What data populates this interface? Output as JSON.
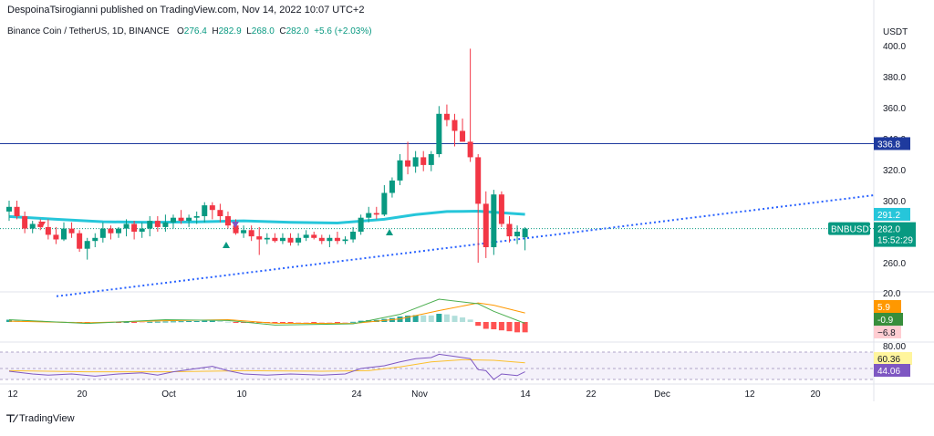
{
  "header": {
    "published_by": "DespoinaTsirogianni published on TradingView.com, Nov 14, 2022 10:07 UTC+2"
  },
  "legend": {
    "symbol": "Binance Coin / TetherUS, 1D, BINANCE",
    "o_label": "O",
    "o_value": "276.4",
    "h_label": "H",
    "h_value": "282.9",
    "l_label": "L",
    "l_value": "268.0",
    "c_label": "C",
    "c_value": "282.0",
    "change": "+5.6 (+2.03%)"
  },
  "price_axis": {
    "currency": "USDT",
    "ticks": [
      "400.0",
      "380.0",
      "360.0",
      "340.0",
      "320.0",
      "300.0",
      "260.0"
    ],
    "labels": {
      "resistance": "336.8",
      "ma": "291.2",
      "symbol_tag": "BNBUSDT",
      "last_price": "282.0",
      "countdown": "15:52:29"
    }
  },
  "macd_axis": {
    "tick_top": "20.0",
    "labels": {
      "signal": "5.9",
      "macd": "-0.9",
      "hist": "−6.8"
    }
  },
  "rsi_axis": {
    "tick_top": "80.00",
    "labels": {
      "rsi_ma": "60.36",
      "rsi": "44.06"
    }
  },
  "time_axis": {
    "labels": [
      "12",
      "20",
      "Oct",
      "10",
      "24",
      "Nov",
      "14",
      "22",
      "Dec",
      "12",
      "20"
    ]
  },
  "footer": {
    "brand": "TradingView"
  },
  "colors": {
    "up": "#089981",
    "down": "#f23645",
    "ma": "#26c6da",
    "resistance": "#1e3a9e",
    "trend": "#2962ff",
    "macd": "#4caf50",
    "signal": "#ff9800",
    "rsi": "#7e57c2",
    "rsi_ma": "#fbc02d"
  },
  "chart_data": {
    "type": "candlestick",
    "x_start": "2022-09-12",
    "candles": [
      {
        "o": 293,
        "h": 300,
        "l": 287,
        "c": 296
      },
      {
        "o": 296,
        "h": 300,
        "l": 288,
        "c": 290
      },
      {
        "o": 290,
        "h": 293,
        "l": 279,
        "c": 282
      },
      {
        "o": 282,
        "h": 287,
        "l": 279,
        "c": 285
      },
      {
        "o": 285,
        "h": 288,
        "l": 281,
        "c": 283
      },
      {
        "o": 283,
        "h": 288,
        "l": 275,
        "c": 278
      },
      {
        "o": 278,
        "h": 283,
        "l": 272,
        "c": 275
      },
      {
        "o": 275,
        "h": 286,
        "l": 274,
        "c": 282
      },
      {
        "o": 282,
        "h": 286,
        "l": 276,
        "c": 279
      },
      {
        "o": 279,
        "h": 281,
        "l": 267,
        "c": 269
      },
      {
        "o": 269,
        "h": 276,
        "l": 262,
        "c": 274
      },
      {
        "o": 274,
        "h": 279,
        "l": 270,
        "c": 276
      },
      {
        "o": 276,
        "h": 286,
        "l": 273,
        "c": 282
      },
      {
        "o": 282,
        "h": 284,
        "l": 275,
        "c": 279
      },
      {
        "o": 279,
        "h": 283,
        "l": 276,
        "c": 282
      },
      {
        "o": 282,
        "h": 288,
        "l": 277,
        "c": 285
      },
      {
        "o": 285,
        "h": 287,
        "l": 275,
        "c": 280
      },
      {
        "o": 280,
        "h": 286,
        "l": 276,
        "c": 282
      },
      {
        "o": 282,
        "h": 290,
        "l": 277,
        "c": 287
      },
      {
        "o": 287,
        "h": 290,
        "l": 280,
        "c": 283
      },
      {
        "o": 283,
        "h": 291,
        "l": 280,
        "c": 286
      },
      {
        "o": 286,
        "h": 291,
        "l": 282,
        "c": 289
      },
      {
        "o": 289,
        "h": 294,
        "l": 285,
        "c": 287
      },
      {
        "o": 287,
        "h": 291,
        "l": 283,
        "c": 289
      },
      {
        "o": 289,
        "h": 293,
        "l": 285,
        "c": 290
      },
      {
        "o": 290,
        "h": 299,
        "l": 286,
        "c": 297
      },
      {
        "o": 297,
        "h": 299,
        "l": 288,
        "c": 294
      },
      {
        "o": 294,
        "h": 298,
        "l": 286,
        "c": 290
      },
      {
        "o": 290,
        "h": 293,
        "l": 282,
        "c": 284
      },
      {
        "o": 284,
        "h": 288,
        "l": 278,
        "c": 279
      },
      {
        "o": 279,
        "h": 284,
        "l": 276,
        "c": 281
      },
      {
        "o": 281,
        "h": 284,
        "l": 274,
        "c": 277
      },
      {
        "o": 277,
        "h": 283,
        "l": 265,
        "c": 275
      },
      {
        "o": 275,
        "h": 279,
        "l": 272,
        "c": 276
      },
      {
        "o": 276,
        "h": 279,
        "l": 273,
        "c": 274
      },
      {
        "o": 274,
        "h": 279,
        "l": 272,
        "c": 276
      },
      {
        "o": 276,
        "h": 279,
        "l": 271,
        "c": 273
      },
      {
        "o": 273,
        "h": 279,
        "l": 271,
        "c": 276
      },
      {
        "o": 276,
        "h": 281,
        "l": 274,
        "c": 278
      },
      {
        "o": 278,
        "h": 280,
        "l": 275,
        "c": 276
      },
      {
        "o": 276,
        "h": 278,
        "l": 272,
        "c": 274
      },
      {
        "o": 274,
        "h": 278,
        "l": 270,
        "c": 276
      },
      {
        "o": 276,
        "h": 280,
        "l": 272,
        "c": 274
      },
      {
        "o": 274,
        "h": 277,
        "l": 272,
        "c": 275
      },
      {
        "o": 275,
        "h": 283,
        "l": 273,
        "c": 280
      },
      {
        "o": 280,
        "h": 291,
        "l": 278,
        "c": 289
      },
      {
        "o": 289,
        "h": 296,
        "l": 286,
        "c": 292
      },
      {
        "o": 292,
        "h": 296,
        "l": 288,
        "c": 291
      },
      {
        "o": 291,
        "h": 310,
        "l": 290,
        "c": 305
      },
      {
        "o": 305,
        "h": 315,
        "l": 302,
        "c": 313
      },
      {
        "o": 313,
        "h": 330,
        "l": 310,
        "c": 326
      },
      {
        "o": 326,
        "h": 338,
        "l": 317,
        "c": 322
      },
      {
        "o": 322,
        "h": 332,
        "l": 318,
        "c": 328
      },
      {
        "o": 328,
        "h": 332,
        "l": 319,
        "c": 323
      },
      {
        "o": 323,
        "h": 332,
        "l": 319,
        "c": 330
      },
      {
        "o": 330,
        "h": 361,
        "l": 328,
        "c": 356
      },
      {
        "o": 356,
        "h": 362,
        "l": 348,
        "c": 352
      },
      {
        "o": 352,
        "h": 356,
        "l": 335,
        "c": 345
      },
      {
        "o": 345,
        "h": 353,
        "l": 338,
        "c": 338
      },
      {
        "o": 338,
        "h": 398,
        "l": 325,
        "c": 328
      },
      {
        "o": 328,
        "h": 330,
        "l": 260,
        "c": 298
      },
      {
        "o": 298,
        "h": 306,
        "l": 263,
        "c": 270
      },
      {
        "o": 270,
        "h": 307,
        "l": 265,
        "c": 304
      },
      {
        "o": 304,
        "h": 306,
        "l": 283,
        "c": 285
      },
      {
        "o": 285,
        "h": 290,
        "l": 273,
        "c": 277
      },
      {
        "o": 277,
        "h": 284,
        "l": 272,
        "c": 280
      },
      {
        "o": 276.4,
        "h": 282.9,
        "l": 268.0,
        "c": 282.0
      }
    ],
    "ma_line": [
      [
        0,
        289.8
      ],
      [
        6,
        288.0
      ],
      [
        12,
        286.4
      ],
      [
        18,
        286.0
      ],
      [
        24,
        286.3
      ],
      [
        30,
        287.0
      ],
      [
        36,
        286.0
      ],
      [
        42,
        285.6
      ],
      [
        48,
        288.0
      ],
      [
        52,
        291.0
      ],
      [
        56,
        293.0
      ],
      [
        60,
        293.2
      ],
      [
        66,
        291.2
      ]
    ],
    "resistance_level": 336.8,
    "trendline": [
      [
        4,
        256
      ],
      [
        78,
        303.5
      ]
    ],
    "macd": {
      "hist": [
        1.5,
        1.3,
        1.0,
        0.9,
        0.8,
        0.4,
        0.3,
        0.2,
        0.1,
        -0.2,
        -0.4,
        -0.3,
        -0.2,
        -0.1,
        -0.1,
        0.0,
        -0.2,
        -0.1,
        0.1,
        0.2,
        0.3,
        0.4,
        0.5,
        0.6,
        0.6,
        0.8,
        0.8,
        0.6,
        0.2,
        -0.1,
        -0.2,
        -0.4,
        -0.6,
        -0.7,
        -0.8,
        -0.8,
        -0.9,
        -0.8,
        -0.7,
        -0.7,
        -0.6,
        -0.5,
        -0.5,
        -0.4,
        0.1,
        0.8,
        1.2,
        1.3,
        2.0,
        2.6,
        3.6,
        4.2,
        4.5,
        4.4,
        4.3,
        5.4,
        5.0,
        4.1,
        3.0,
        1.6,
        -2.5,
        -4.5,
        -4.8,
        -5.5,
        -6.1,
        -6.8,
        -6.8
      ],
      "macd_line": [
        [
          0,
          1.5
        ],
        [
          10,
          -1.0
        ],
        [
          20,
          1.5
        ],
        [
          28,
          1.0
        ],
        [
          34,
          -2.0
        ],
        [
          44,
          -1.2
        ],
        [
          50,
          5.0
        ],
        [
          55,
          15.0
        ],
        [
          60,
          12.0
        ],
        [
          62,
          7.0
        ],
        [
          66,
          -0.9
        ]
      ],
      "signal_line": [
        [
          0,
          0.5
        ],
        [
          10,
          -0.5
        ],
        [
          20,
          0.8
        ],
        [
          28,
          1.5
        ],
        [
          34,
          -0.8
        ],
        [
          44,
          -1.0
        ],
        [
          50,
          2.0
        ],
        [
          55,
          7.5
        ],
        [
          60,
          12.5
        ],
        [
          62,
          11.0
        ],
        [
          66,
          5.9
        ]
      ]
    },
    "rsi": {
      "rsi_line": [
        [
          0,
          45
        ],
        [
          3,
          40
        ],
        [
          5,
          38
        ],
        [
          8,
          40
        ],
        [
          11,
          36
        ],
        [
          14,
          40
        ],
        [
          17,
          42
        ],
        [
          19,
          38
        ],
        [
          21,
          44
        ],
        [
          24,
          50
        ],
        [
          26,
          54
        ],
        [
          28,
          46
        ],
        [
          30,
          40
        ],
        [
          33,
          38
        ],
        [
          36,
          40
        ],
        [
          40,
          38
        ],
        [
          43,
          40
        ],
        [
          45,
          50
        ],
        [
          48,
          55
        ],
        [
          50,
          62
        ],
        [
          52,
          68
        ],
        [
          54,
          70
        ],
        [
          55,
          76
        ],
        [
          57,
          72
        ],
        [
          58,
          70
        ],
        [
          59,
          68
        ],
        [
          60,
          48
        ],
        [
          61,
          46
        ],
        [
          62,
          30
        ],
        [
          63,
          40
        ],
        [
          65,
          37
        ],
        [
          66,
          44
        ]
      ],
      "rsi_ma_line": [
        [
          0,
          46
        ],
        [
          10,
          44
        ],
        [
          20,
          44
        ],
        [
          30,
          46
        ],
        [
          40,
          45
        ],
        [
          46,
          46
        ],
        [
          50,
          53
        ],
        [
          54,
          62
        ],
        [
          58,
          66
        ],
        [
          62,
          65
        ],
        [
          66,
          60.36
        ]
      ],
      "levels": [
        80,
        50,
        30
      ]
    }
  }
}
